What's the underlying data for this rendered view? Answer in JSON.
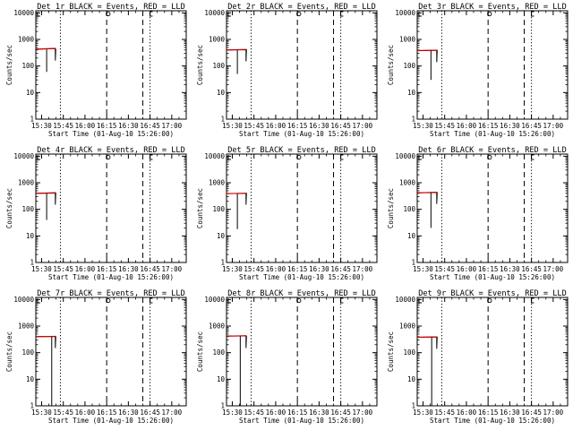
{
  "figure": {
    "x_tick_labels": [
      "15:30",
      "15:45",
      "16:00",
      "16:15",
      "16:30",
      "16:45",
      "17:00"
    ],
    "y_tick_labels": [
      "1",
      "10",
      "100",
      "1000",
      "10000"
    ],
    "xlabel": "Start Time (01-Aug-10 15:26:00)",
    "ylabel": "Counts/sec",
    "colors": {
      "events": "#000000",
      "lld": "#d00000",
      "axes": "#000000"
    }
  },
  "chart_data": [
    {
      "type": "line",
      "title": "Det 1r BLACK = Events, RED = LLD",
      "x_range_min": [
        0,
        104
      ],
      "ylim": [
        1,
        12000
      ],
      "yscale": "log",
      "series": [
        {
          "name": "Events",
          "x": [
            0.0,
            13.5,
            13.5,
            13.8
          ],
          "y": [
            430,
            450,
            160,
            440
          ]
        },
        {
          "name": "LLD",
          "x": [
            0.0,
            13.8
          ],
          "y": [
            430,
            460
          ]
        }
      ],
      "dip": {
        "x": 7.5,
        "y": 60
      },
      "dotted_lines_min": [
        17.0,
        79.0
      ],
      "dashed_lines_min": [
        49.0,
        74.0
      ],
      "markers": {
        "O": 50.0,
        "C": 79.5
      }
    },
    {
      "type": "line",
      "title": "Det 2r BLACK = Events, RED = LLD",
      "x_range_min": [
        0,
        104
      ],
      "ylim": [
        1,
        12000
      ],
      "yscale": "log",
      "series": [
        {
          "name": "Events",
          "x": [
            0.0,
            13.5,
            13.5,
            13.8
          ],
          "y": [
            400,
            410,
            150,
            430
          ]
        },
        {
          "name": "LLD",
          "x": [
            0.0,
            13.8
          ],
          "y": [
            400,
            420
          ]
        }
      ],
      "dip": {
        "x": 7.5,
        "y": 50
      },
      "dotted_lines_min": [
        17.0,
        79.0
      ],
      "dashed_lines_min": [
        49.0,
        74.0
      ],
      "markers": {
        "O": 50.0,
        "C": 79.5
      }
    },
    {
      "type": "line",
      "title": "Det 3r BLACK = Events, RED = LLD",
      "x_range_min": [
        0,
        104
      ],
      "ylim": [
        1,
        12000
      ],
      "yscale": "log",
      "series": [
        {
          "name": "Events",
          "x": [
            0.0,
            13.5,
            13.5,
            13.8
          ],
          "y": [
            380,
            390,
            140,
            410
          ]
        },
        {
          "name": "LLD",
          "x": [
            0.0,
            13.8
          ],
          "y": [
            380,
            390
          ]
        }
      ],
      "dip": {
        "x": 9.5,
        "y": 30
      },
      "dotted_lines_min": [
        17.0,
        79.0
      ],
      "dashed_lines_min": [
        49.0,
        74.0
      ],
      "markers": {
        "O": 50.0,
        "C": 79.5
      }
    },
    {
      "type": "line",
      "title": "Det 4r BLACK = Events, RED = LLD",
      "x_range_min": [
        0,
        104
      ],
      "ylim": [
        1,
        12000
      ],
      "yscale": "log",
      "series": [
        {
          "name": "Events",
          "x": [
            0.0,
            13.5,
            13.5,
            13.8
          ],
          "y": [
            400,
            420,
            150,
            430
          ]
        },
        {
          "name": "LLD",
          "x": [
            0.0,
            13.8
          ],
          "y": [
            400,
            410
          ]
        }
      ],
      "dip": {
        "x": 7.5,
        "y": 40
      },
      "dotted_lines_min": [
        17.0,
        79.0
      ],
      "dashed_lines_min": [
        49.0,
        74.0
      ],
      "markers": {
        "O": 50.0,
        "C": 79.5
      }
    },
    {
      "type": "line",
      "title": "Det 5r BLACK = Events, RED = LLD",
      "x_range_min": [
        0,
        104
      ],
      "ylim": [
        1,
        12000
      ],
      "yscale": "log",
      "series": [
        {
          "name": "Events",
          "x": [
            0.0,
            13.5,
            13.5,
            13.8
          ],
          "y": [
            390,
            400,
            150,
            420
          ]
        },
        {
          "name": "LLD",
          "x": [
            0.0,
            13.8
          ],
          "y": [
            390,
            400
          ]
        }
      ],
      "dip": {
        "x": 7.5,
        "y": 18
      },
      "dotted_lines_min": [
        17.0,
        79.0
      ],
      "dashed_lines_min": [
        49.0,
        74.0
      ],
      "markers": {
        "O": 50.0,
        "C": 79.5
      }
    },
    {
      "type": "line",
      "title": "Det 6r BLACK = Events, RED = LLD",
      "x_range_min": [
        0,
        104
      ],
      "ylim": [
        1,
        12000
      ],
      "yscale": "log",
      "series": [
        {
          "name": "Events",
          "x": [
            0.0,
            13.5,
            13.5,
            13.8
          ],
          "y": [
            420,
            440,
            160,
            440
          ]
        },
        {
          "name": "LLD",
          "x": [
            0.0,
            13.8
          ],
          "y": [
            420,
            430
          ]
        }
      ],
      "dip": {
        "x": 9.5,
        "y": 20
      },
      "dotted_lines_min": [
        17.0,
        79.0
      ],
      "dashed_lines_min": [
        49.0,
        74.0
      ],
      "markers": {
        "O": 50.0,
        "C": 79.5
      }
    },
    {
      "type": "line",
      "title": "Det 7r BLACK = Events, RED = LLD",
      "x_range_min": [
        0,
        104
      ],
      "ylim": [
        1,
        12000
      ],
      "yscale": "log",
      "series": [
        {
          "name": "Events",
          "x": [
            0.0,
            13.5,
            13.5,
            13.8
          ],
          "y": [
            400,
            410,
            150,
            420
          ]
        },
        {
          "name": "LLD",
          "x": [
            0.0,
            13.8
          ],
          "y": [
            400,
            410
          ]
        }
      ],
      "dip": {
        "x": 11.0,
        "y": 1
      },
      "dotted_lines_min": [
        17.0,
        79.0
      ],
      "dashed_lines_min": [
        49.0,
        74.0
      ],
      "markers": {
        "O": 50.0,
        "C": 79.5
      }
    },
    {
      "type": "line",
      "title": "Det 8r BLACK = Events, RED = LLD",
      "x_range_min": [
        0,
        104
      ],
      "ylim": [
        1,
        12000
      ],
      "yscale": "log",
      "series": [
        {
          "name": "Events",
          "x": [
            0.0,
            13.5,
            13.5,
            13.8
          ],
          "y": [
            420,
            430,
            150,
            430
          ]
        },
        {
          "name": "LLD",
          "x": [
            0.0,
            13.8
          ],
          "y": [
            420,
            430
          ]
        }
      ],
      "dip": {
        "x": 9.5,
        "y": 1
      },
      "dotted_lines_min": [
        17.0,
        79.0
      ],
      "dashed_lines_min": [
        49.0,
        74.0
      ],
      "markers": {
        "O": 50.0,
        "C": 79.5
      }
    },
    {
      "type": "line",
      "title": "Det 9r BLACK = Events, RED = LLD",
      "x_range_min": [
        0,
        104
      ],
      "ylim": [
        1,
        12000
      ],
      "yscale": "log",
      "series": [
        {
          "name": "Events",
          "x": [
            0.0,
            13.5,
            13.5,
            13.8
          ],
          "y": [
            380,
            390,
            140,
            400
          ]
        },
        {
          "name": "LLD",
          "x": [
            0.0,
            13.8
          ],
          "y": [
            380,
            390
          ]
        }
      ],
      "dip": {
        "x": 10.0,
        "y": 1
      },
      "dotted_lines_min": [
        17.0,
        79.0
      ],
      "dashed_lines_min": [
        49.0,
        74.0
      ],
      "markers": {
        "O": 50.0,
        "C": 79.5
      }
    }
  ]
}
